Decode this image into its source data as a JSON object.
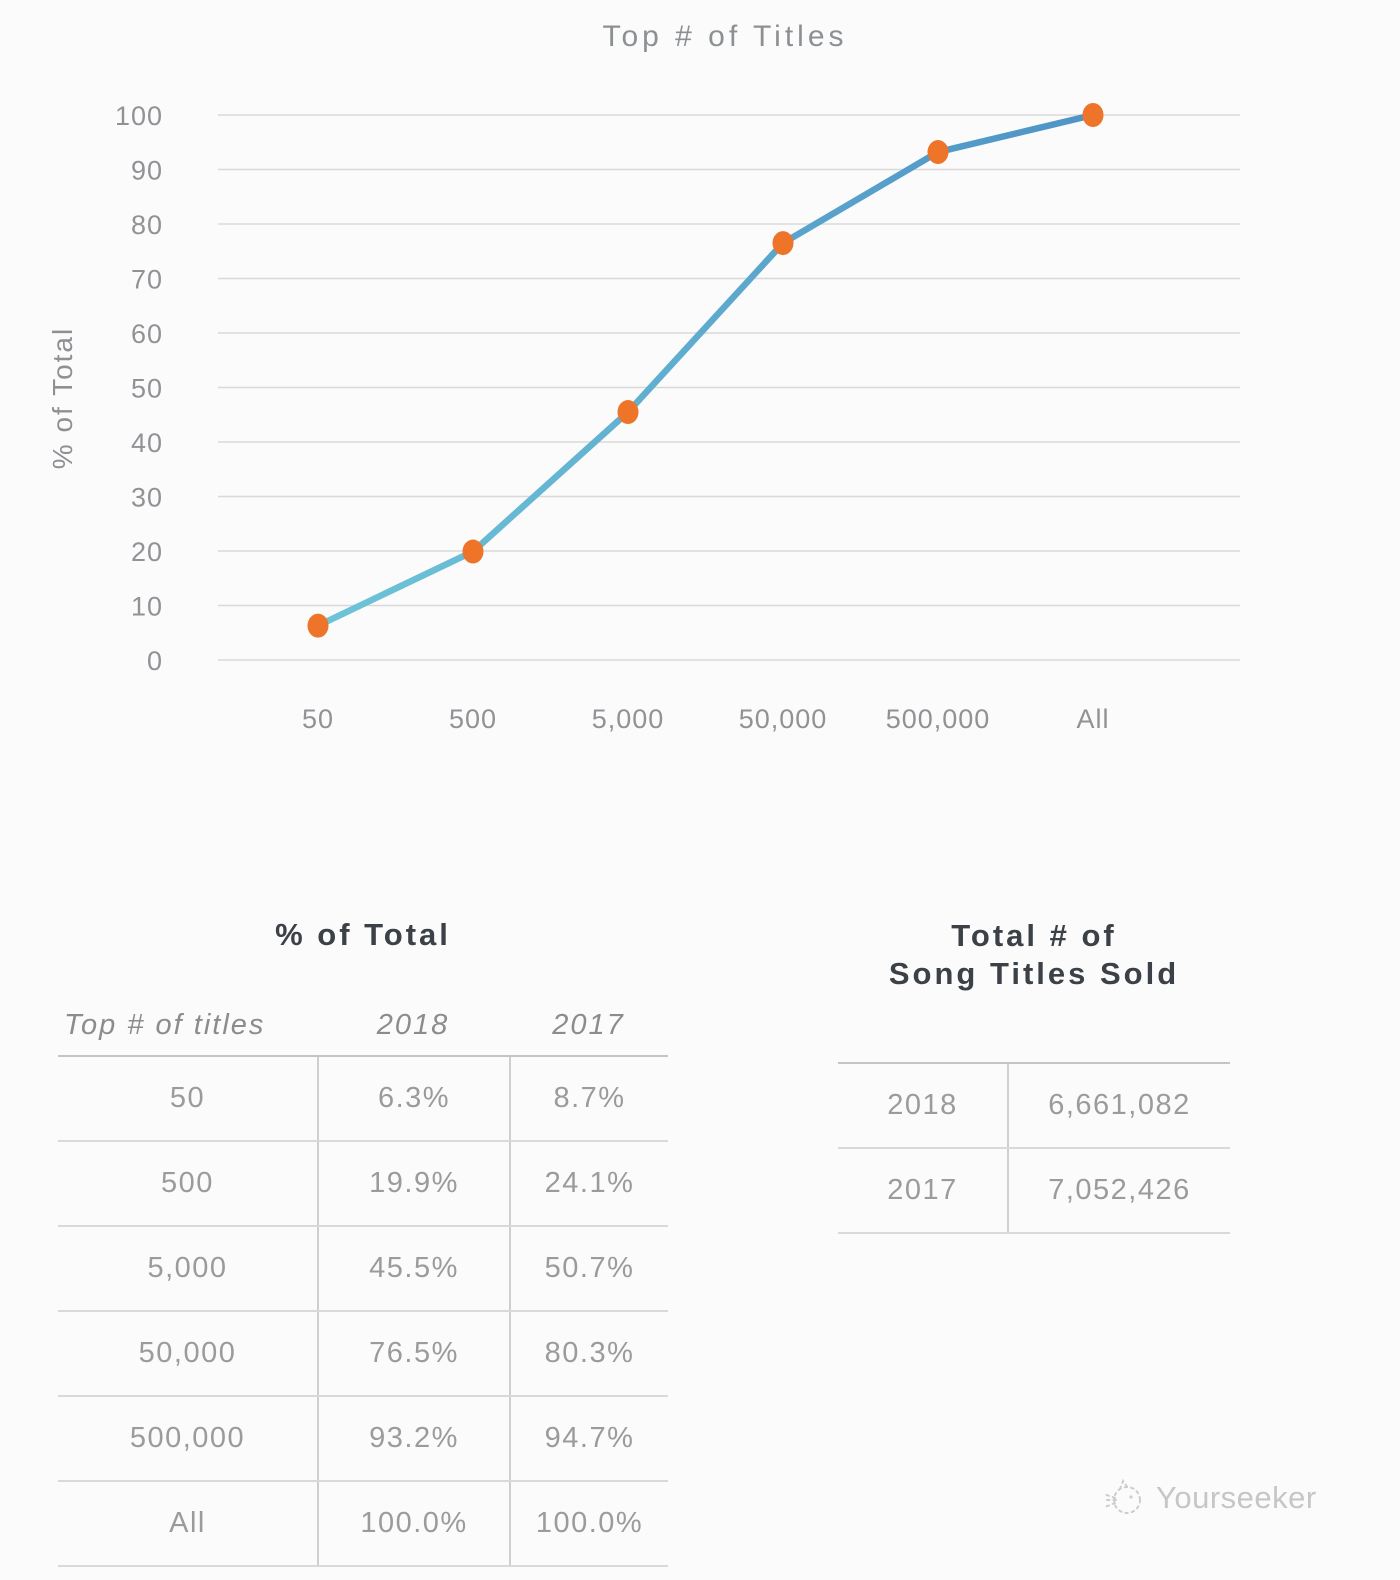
{
  "chart_data": {
    "type": "line",
    "title": "Top # of Titles",
    "xlabel": "",
    "ylabel": "% of Total",
    "categories": [
      "50",
      "500",
      "5,000",
      "50,000",
      "500,000",
      "All"
    ],
    "series": [
      {
        "name": "2018",
        "values": [
          6.3,
          19.9,
          45.5,
          76.5,
          93.2,
          100.0
        ]
      }
    ],
    "ylim": [
      0,
      100
    ],
    "yticks": [
      0,
      10,
      20,
      30,
      40,
      50,
      60,
      70,
      80,
      90,
      100
    ],
    "grid": true,
    "legend": "none",
    "line_gradient": [
      "#6ec4d8",
      "#4f94c5"
    ],
    "marker_color": "#ee7429"
  },
  "pct_table": {
    "title": "% of Total",
    "headers": [
      "Top # of titles",
      "2018",
      "2017"
    ],
    "rows": [
      [
        "50",
        "6.3%",
        "8.7%"
      ],
      [
        "500",
        "19.9%",
        "24.1%"
      ],
      [
        "5,000",
        "45.5%",
        "50.7%"
      ],
      [
        "50,000",
        "76.5%",
        "80.3%"
      ],
      [
        "500,000",
        "93.2%",
        "94.7%"
      ],
      [
        "All",
        "100.0%",
        "100.0%"
      ]
    ]
  },
  "totals_table": {
    "title_line1": "Total # of",
    "title_line2": "Song Titles Sold",
    "rows": [
      [
        "2018",
        "6,661,082"
      ],
      [
        "2017",
        "7,052,426"
      ]
    ]
  },
  "watermark": {
    "label": "Yourseeker",
    "icon": "cat-sketch-icon",
    "color": "#c6c6c6"
  }
}
